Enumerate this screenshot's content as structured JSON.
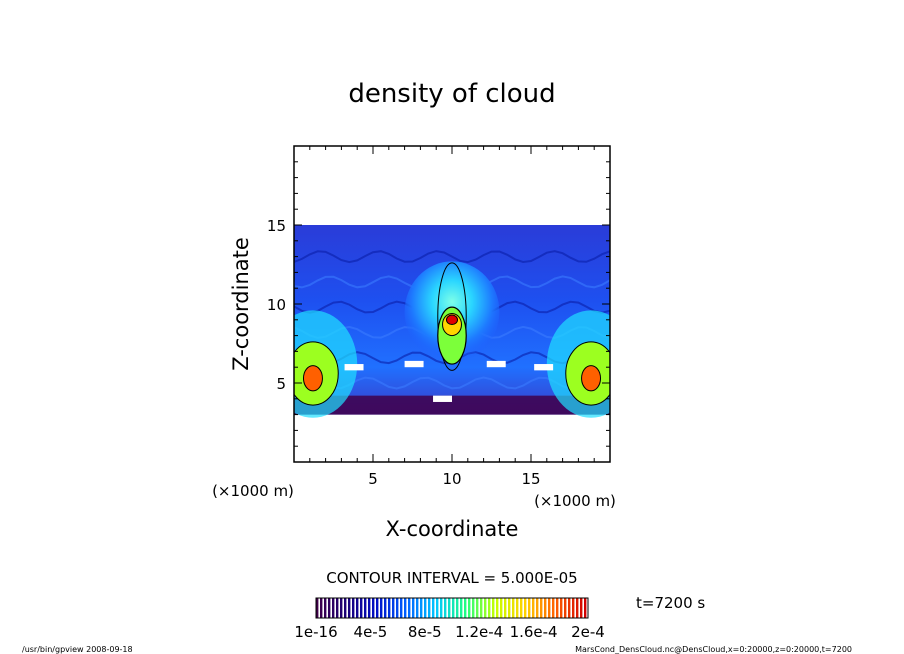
{
  "chart_data": {
    "type": "heatmap",
    "title": "density of cloud",
    "xlabel": "X-coordinate",
    "ylabel": "Z-coordinate",
    "x_unit": "(×1000 m)",
    "y_unit": "(×1000 m)",
    "xlim": [
      0,
      20
    ],
    "ylim": [
      0,
      20
    ],
    "x_ticks": [
      5,
      10,
      15
    ],
    "y_ticks": [
      5,
      10,
      15
    ],
    "field_extent_z": [
      3,
      15
    ],
    "contour_interval_text": "CONTOUR INTERVAL = 5.000E-05",
    "time_text": "t=7200 s",
    "colorbar": {
      "tick_labels": [
        "1e-16",
        "4e-5",
        "8e-5",
        "1.2e-4",
        "1.6e-4",
        "2e-4"
      ],
      "min": 1e-16,
      "max": 0.0002,
      "colors": [
        "#40004a",
        "#1a0078",
        "#0010c8",
        "#0060ff",
        "#00c8ff",
        "#20ff80",
        "#c8ff00",
        "#ffd000",
        "#ff6000",
        "#d00000",
        "#ffffff"
      ]
    }
  },
  "footer": {
    "left": "/usr/bin/gpview   2008-09-18",
    "right": "MarsCond_DensCloud.nc@DensCloud,x=0:20000,z=0:20000,t=7200"
  }
}
